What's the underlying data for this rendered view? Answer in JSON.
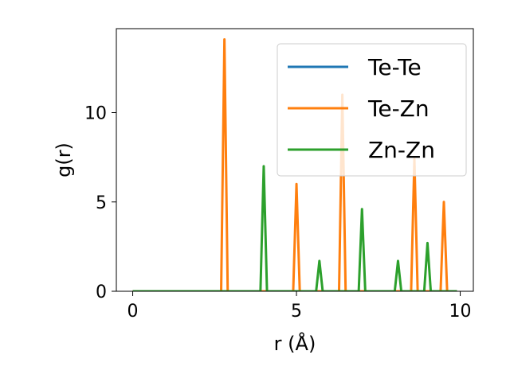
{
  "chart_data": {
    "type": "line",
    "title": "",
    "xlabel": "r (Å)",
    "ylabel": "g(r)",
    "xlim": [
      -0.5,
      10.4
    ],
    "ylim": [
      0,
      14.7
    ],
    "xticks": [
      0,
      5,
      10
    ],
    "yticks": [
      0,
      5,
      10
    ],
    "legend_position": "top-right",
    "series": [
      {
        "name": "Te-Te",
        "color": "#1f77b4",
        "x": [
          0,
          9.9
        ],
        "y": [
          0,
          0
        ]
      },
      {
        "name": "Te-Zn",
        "color": "#ff7f0e",
        "x": [
          0,
          2.7,
          2.8,
          2.9,
          4.9,
          5.0,
          5.1,
          6.3,
          6.4,
          6.5,
          8.5,
          8.6,
          8.7,
          9.4,
          9.5,
          9.6,
          9.9
        ],
        "y": [
          0,
          0,
          14.1,
          0,
          0,
          6.0,
          0,
          0,
          11.0,
          0,
          0,
          7.4,
          0,
          0,
          5.0,
          0,
          0
        ]
      },
      {
        "name": "Zn-Zn",
        "color": "#2ca02c",
        "x": [
          0,
          3.9,
          4.0,
          4.1,
          5.6,
          5.7,
          5.8,
          6.9,
          7.0,
          7.1,
          8.0,
          8.1,
          8.2,
          8.9,
          9.0,
          9.1,
          9.9
        ],
        "y": [
          0,
          0,
          7.0,
          0,
          0,
          1.7,
          0,
          0,
          4.6,
          0,
          0,
          1.7,
          0,
          0,
          2.7,
          0,
          0
        ]
      }
    ]
  }
}
